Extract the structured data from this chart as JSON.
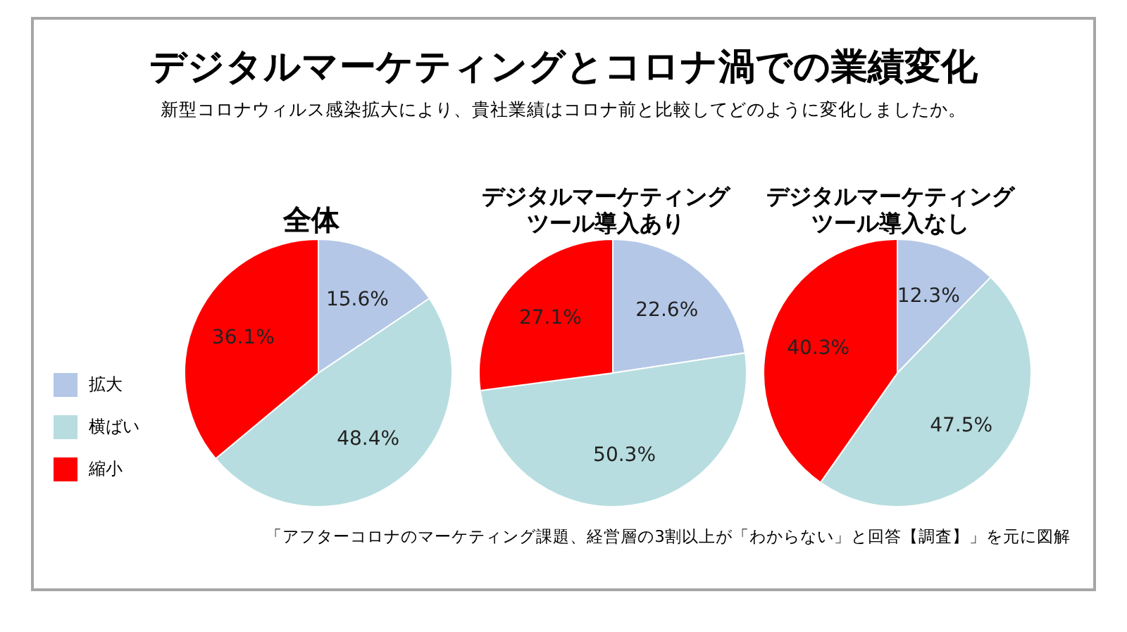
{
  "chart_data": [
    {
      "type": "other",
      "title": "デジタルマーケティングとコロナ渦での業績変化",
      "subtitle": "新型コロナウィルス感染拡大により、貴社業績はコロナ前と比較してどのように変化しましたか。",
      "annotations": [
        "「アフターコロナのマーケティング課題、経営層の3割以上が「わからない」と回答【調査】」を元に図解"
      ]
    },
    {
      "type": "pie",
      "title": "全体",
      "categories": [
        "拡大",
        "横ばい",
        "縮小"
      ],
      "values": [
        15.6,
        48.4,
        36.1
      ],
      "value_labels": [
        "15.6%",
        "48.4%",
        "36.1%"
      ],
      "colors": [
        "#b4c7e7",
        "#b7dde0",
        "#ff0000"
      ],
      "legend": "left"
    },
    {
      "type": "pie",
      "title": "デジタルマーケティングツール導入あり",
      "values": [
        22.6,
        50.3,
        27.1
      ],
      "value_labels": [
        "22.6%",
        "50.3%",
        "27.1%"
      ],
      "colors": [
        "#b4c7e7",
        "#b7dde0",
        "#ff0000"
      ]
    },
    {
      "type": "pie",
      "title": "デジタルマーケティングツール導入なし",
      "values": [
        12.3,
        47.5,
        40.3
      ],
      "value_labels": [
        "12.3%",
        "47.5%",
        "40.3%"
      ],
      "colors": [
        "#b4c7e7",
        "#b7dde0",
        "#ff0000"
      ]
    }
  ]
}
